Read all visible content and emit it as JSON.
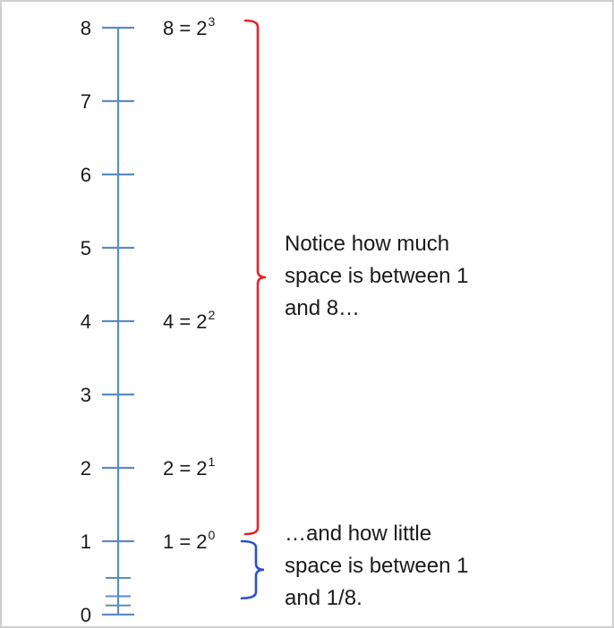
{
  "axis": {
    "ticks": [
      {
        "value": 8,
        "label": "8"
      },
      {
        "value": 7,
        "label": "7"
      },
      {
        "value": 6,
        "label": "6"
      },
      {
        "value": 5,
        "label": "5"
      },
      {
        "value": 4,
        "label": "4"
      },
      {
        "value": 3,
        "label": "3"
      },
      {
        "value": 2,
        "label": "2"
      },
      {
        "value": 1,
        "label": "1"
      },
      {
        "value": 0,
        "label": "0"
      }
    ],
    "minor_ticks": [
      0.5,
      0.25,
      0.125
    ],
    "color": "#5b8cc4"
  },
  "equations": [
    {
      "value": 8,
      "base": "8 = 2",
      "exp": "3"
    },
    {
      "value": 4,
      "base": "4 = 2",
      "exp": "2"
    },
    {
      "value": 2,
      "base": "2 = 2",
      "exp": "1"
    },
    {
      "value": 1,
      "base": "1 = 2",
      "exp": "0"
    }
  ],
  "brackets": {
    "red": {
      "color": "#e8202a",
      "from": 1,
      "to": 8
    },
    "blue": {
      "color": "#2a4fd0",
      "from": 0.125,
      "to": 1
    }
  },
  "notes": {
    "red": [
      "Notice how much",
      "space is between 1",
      "and 8…"
    ],
    "blue": [
      "…and how little",
      "space is between 1",
      "and 1/8."
    ]
  }
}
